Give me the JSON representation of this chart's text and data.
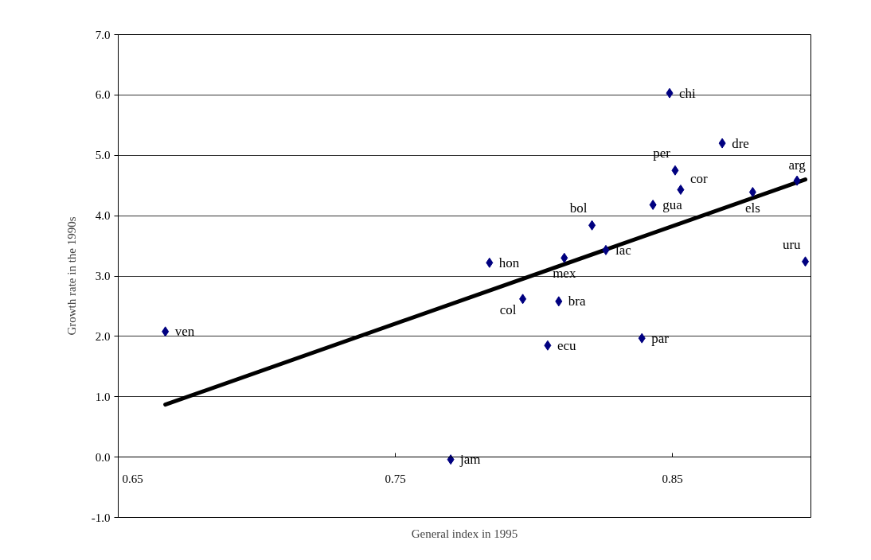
{
  "chart_data": {
    "type": "scatter",
    "xlabel": "General index in 1995",
    "ylabel": "Growth rate in the 1990s",
    "xlim": [
      0.65,
      0.9
    ],
    "xticks": [
      0.65,
      0.75,
      0.85
    ],
    "ylim": [
      -1,
      7
    ],
    "yticks": [
      {
        "value": -1,
        "label": "-1.0"
      },
      {
        "value": 0,
        "label": "0.0"
      },
      {
        "value": 1,
        "label": "1.0"
      },
      {
        "value": 2,
        "label": "2.0"
      },
      {
        "value": 3,
        "label": "3.0"
      },
      {
        "value": 4,
        "label": "4.0"
      },
      {
        "value": 5,
        "label": "5.0"
      },
      {
        "value": 6,
        "label": "6.0"
      },
      {
        "value": 7,
        "label": "7.0"
      }
    ],
    "grid": "y",
    "series": [
      {
        "marker": "diamond",
        "color": "#000080",
        "x": [
          0.849,
          0.868,
          0.851,
          0.853,
          0.843,
          0.879,
          0.895,
          0.821,
          0.826,
          0.811,
          0.784,
          0.898,
          0.796,
          0.809,
          0.805,
          0.839,
          0.667,
          0.77
        ],
        "values": [
          6.03,
          5.2,
          4.75,
          4.43,
          4.18,
          4.39,
          4.58,
          3.84,
          3.43,
          3.3,
          3.22,
          3.24,
          2.62,
          2.58,
          1.85,
          1.97,
          2.08,
          -0.04
        ]
      },
      {
        "type": "line",
        "color": "#000000",
        "x": [
          0.667,
          0.898
        ],
        "values": [
          0.87,
          4.6
        ]
      }
    ],
    "annotations": [
      {
        "text": "chi",
        "x": 0.849,
        "y": 6.03
      },
      {
        "text": "dre",
        "x": 0.868,
        "y": 5.2
      },
      {
        "text": "per",
        "x": 0.851,
        "y": 4.75
      },
      {
        "text": "cor",
        "x": 0.853,
        "y": 4.43
      },
      {
        "text": "gua",
        "x": 0.843,
        "y": 4.18
      },
      {
        "text": "els",
        "x": 0.879,
        "y": 4.39
      },
      {
        "text": "arg",
        "x": 0.895,
        "y": 4.58
      },
      {
        "text": "bol",
        "x": 0.821,
        "y": 3.84
      },
      {
        "text": "lac",
        "x": 0.826,
        "y": 3.43
      },
      {
        "text": "mex",
        "x": 0.811,
        "y": 3.3
      },
      {
        "text": "hon",
        "x": 0.784,
        "y": 3.22
      },
      {
        "text": "uru",
        "x": 0.898,
        "y": 3.24
      },
      {
        "text": "col",
        "x": 0.796,
        "y": 2.62
      },
      {
        "text": "bra",
        "x": 0.809,
        "y": 2.58
      },
      {
        "text": "ecu",
        "x": 0.805,
        "y": 1.85
      },
      {
        "text": "par",
        "x": 0.839,
        "y": 1.97
      },
      {
        "text": "ven",
        "x": 0.667,
        "y": 2.08
      },
      {
        "text": "jam",
        "x": 0.77,
        "y": -0.04
      }
    ]
  }
}
